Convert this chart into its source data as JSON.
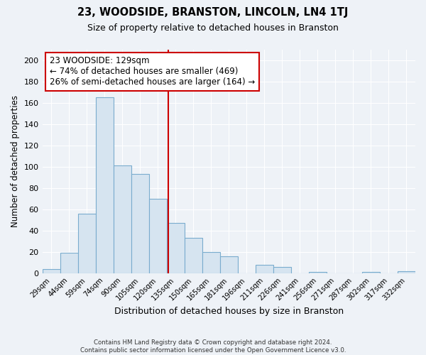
{
  "title": "23, WOODSIDE, BRANSTON, LINCOLN, LN4 1TJ",
  "subtitle": "Size of property relative to detached houses in Branston",
  "xlabel": "Distribution of detached houses by size in Branston",
  "ylabel": "Number of detached properties",
  "bar_color": "#d6e4f0",
  "bar_edge_color": "#7aacce",
  "categories": [
    "29sqm",
    "44sqm",
    "59sqm",
    "74sqm",
    "90sqm",
    "105sqm",
    "120sqm",
    "135sqm",
    "150sqm",
    "165sqm",
    "181sqm",
    "196sqm",
    "211sqm",
    "226sqm",
    "241sqm",
    "256sqm",
    "271sqm",
    "287sqm",
    "302sqm",
    "317sqm",
    "332sqm"
  ],
  "values": [
    4,
    19,
    56,
    165,
    101,
    93,
    70,
    47,
    33,
    20,
    16,
    0,
    8,
    6,
    0,
    1,
    0,
    0,
    1,
    0,
    2
  ],
  "vline_color": "#cc0000",
  "annotation_title": "23 WOODSIDE: 129sqm",
  "annotation_line1": "← 74% of detached houses are smaller (469)",
  "annotation_line2": "26% of semi-detached houses are larger (164) →",
  "annotation_box_color": "#ffffff",
  "annotation_box_edge": "#cc0000",
  "ylim": [
    0,
    210
  ],
  "yticks": [
    0,
    20,
    40,
    60,
    80,
    100,
    120,
    140,
    160,
    180,
    200
  ],
  "footnote1": "Contains HM Land Registry data © Crown copyright and database right 2024.",
  "footnote2": "Contains public sector information licensed under the Open Government Licence v3.0.",
  "background_color": "#eef2f7",
  "grid_color": "#c8d4e0"
}
